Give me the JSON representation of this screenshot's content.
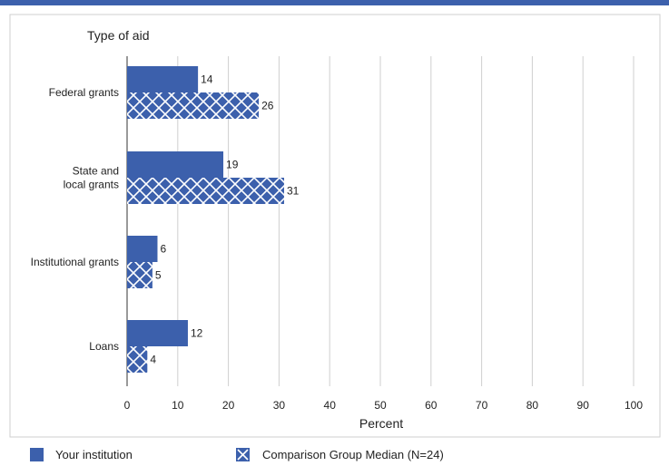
{
  "chart_data": {
    "type": "bar",
    "orientation": "horizontal",
    "title": "Type of aid",
    "xlabel": "Percent",
    "xlim": [
      0,
      100
    ],
    "x_ticks": [
      0,
      10,
      20,
      30,
      40,
      50,
      60,
      70,
      80,
      90,
      100
    ],
    "grid": true,
    "legend_placement": "bottom",
    "categories": [
      {
        "lines": [
          "Federal grants"
        ]
      },
      {
        "lines": [
          "State and",
          "local grants"
        ]
      },
      {
        "lines": [
          "Institutional grants"
        ]
      },
      {
        "lines": [
          "Loans"
        ]
      }
    ],
    "series": [
      {
        "name": "Your institution",
        "values": [
          14,
          19,
          6,
          12
        ],
        "color": "#3c60ac",
        "pattern": "solid"
      },
      {
        "name": "Comparison Group Median (N=24)",
        "values": [
          26,
          31,
          5,
          4
        ],
        "color": "#3c60ac",
        "pattern": "crosshatch"
      }
    ]
  }
}
